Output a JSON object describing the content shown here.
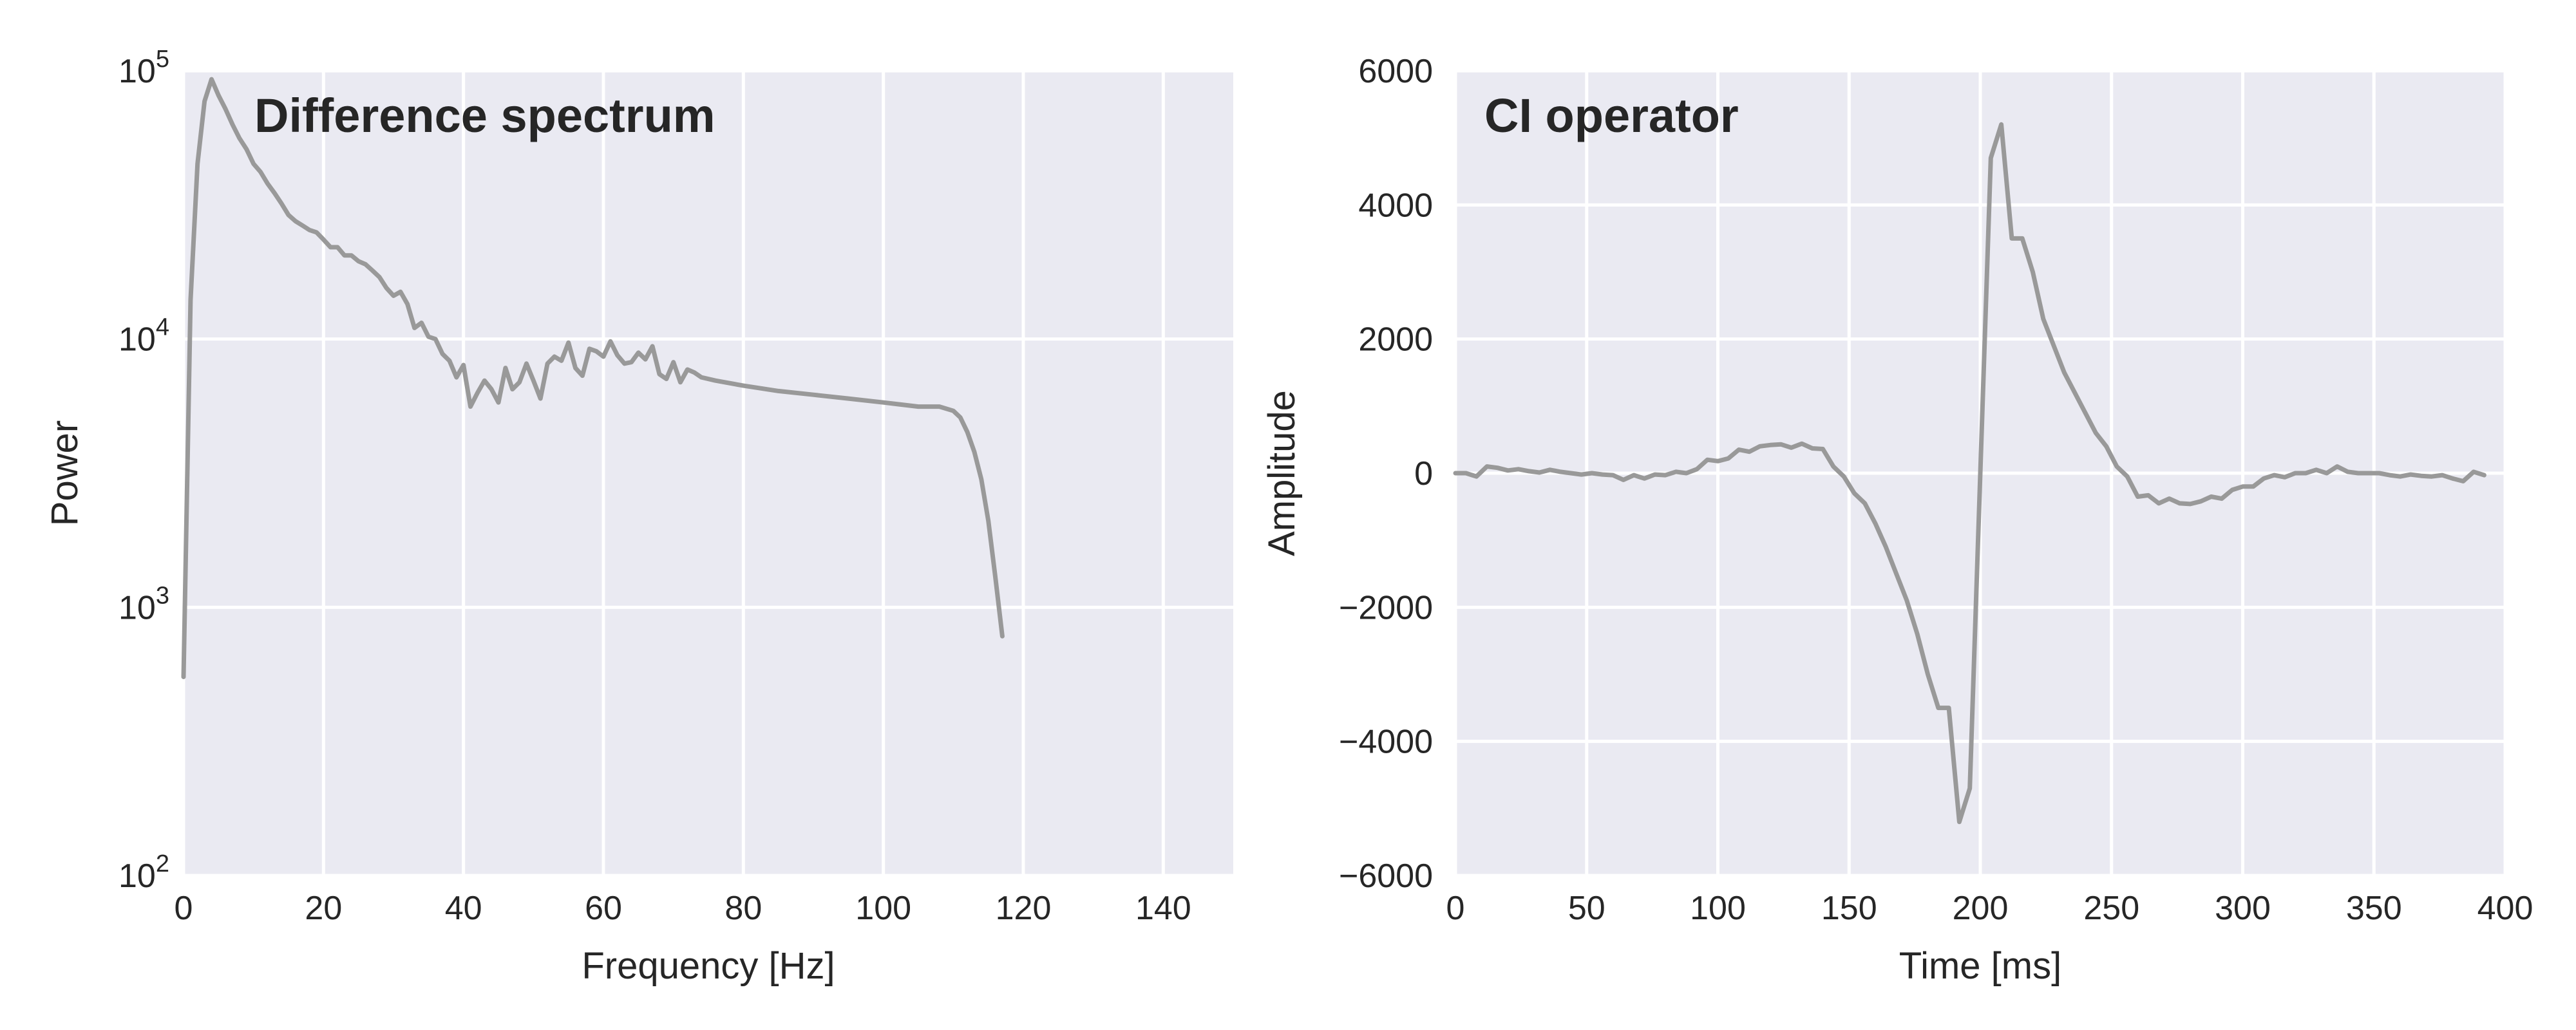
{
  "colors": {
    "plot_background": "#eaeaf2",
    "grid": "#ffffff",
    "series": "#999999",
    "text": "#262626"
  },
  "chart_data": [
    {
      "type": "line",
      "title": "Difference spectrum",
      "xlabel": "Frequency [Hz]",
      "ylabel": "Power",
      "yscale": "log",
      "xlim": [
        0,
        150
      ],
      "ylim": [
        100,
        100000
      ],
      "grid": true,
      "xticks": [
        0,
        20,
        40,
        60,
        80,
        100,
        120,
        140
      ],
      "yticks": [
        {
          "value": 100,
          "base": "10",
          "exp": "2"
        },
        {
          "value": 1000,
          "base": "10",
          "exp": "3"
        },
        {
          "value": 10000,
          "base": "10",
          "exp": "4"
        },
        {
          "value": 100000,
          "base": "10",
          "exp": "5"
        }
      ],
      "series": [
        {
          "points": [
            [
              0,
              550
            ],
            [
              1,
              14000
            ],
            [
              2,
              45000
            ],
            [
              3,
              77000
            ],
            [
              4,
              93000
            ],
            [
              5,
              81000
            ],
            [
              6,
              72000
            ],
            [
              7,
              63000
            ],
            [
              8,
              56000
            ],
            [
              9,
              51000
            ],
            [
              10,
              45000
            ],
            [
              11,
              42000
            ],
            [
              12,
              38000
            ],
            [
              13,
              35000
            ],
            [
              14,
              32000
            ],
            [
              15,
              29000
            ],
            [
              16,
              27500
            ],
            [
              17,
              26500
            ],
            [
              18,
              25500
            ],
            [
              19,
              25000
            ],
            [
              20,
              23500
            ],
            [
              21,
              22000
            ],
            [
              22,
              22000
            ],
            [
              23,
              20500
            ],
            [
              24,
              20500
            ],
            [
              25,
              19500
            ],
            [
              26,
              19000
            ],
            [
              27,
              18000
            ],
            [
              28,
              17000
            ],
            [
              29,
              15500
            ],
            [
              30,
              14500
            ],
            [
              31,
              15000
            ],
            [
              32,
              13500
            ],
            [
              33,
              11000
            ],
            [
              34,
              11500
            ],
            [
              35,
              10200
            ],
            [
              36,
              10000
            ],
            [
              37,
              8800
            ],
            [
              38,
              8300
            ],
            [
              39,
              7200
            ],
            [
              40,
              8000
            ],
            [
              41,
              5600
            ],
            [
              42,
              6300
            ],
            [
              43,
              7000
            ],
            [
              44,
              6500
            ],
            [
              45,
              5800
            ],
            [
              46,
              7800
            ],
            [
              47,
              6500
            ],
            [
              48,
              6900
            ],
            [
              49,
              8100
            ],
            [
              50,
              7000
            ],
            [
              51,
              6000
            ],
            [
              52,
              8100
            ],
            [
              53,
              8600
            ],
            [
              54,
              8300
            ],
            [
              55,
              9700
            ],
            [
              56,
              7800
            ],
            [
              57,
              7300
            ],
            [
              58,
              9200
            ],
            [
              59,
              9000
            ],
            [
              60,
              8600
            ],
            [
              61,
              9800
            ],
            [
              62,
              8700
            ],
            [
              63,
              8100
            ],
            [
              64,
              8200
            ],
            [
              65,
              8900
            ],
            [
              66,
              8400
            ],
            [
              67,
              9400
            ],
            [
              68,
              7400
            ],
            [
              69,
              7100
            ],
            [
              70,
              8200
            ],
            [
              71,
              6900
            ],
            [
              72,
              7700
            ],
            [
              73,
              7500
            ],
            [
              74,
              7200
            ],
            [
              76,
              7000
            ],
            [
              80,
              6700
            ],
            [
              85,
              6400
            ],
            [
              90,
              6200
            ],
            [
              95,
              6000
            ],
            [
              100,
              5800
            ],
            [
              105,
              5600
            ],
            [
              108,
              5600
            ],
            [
              110,
              5400
            ],
            [
              111,
              5100
            ],
            [
              112,
              4500
            ],
            [
              113,
              3800
            ],
            [
              114,
              3000
            ],
            [
              115,
              2100
            ],
            [
              116,
              1300
            ],
            [
              117,
              780
            ]
          ]
        }
      ]
    },
    {
      "type": "line",
      "title": "CI operator",
      "xlabel": "Time [ms]",
      "ylabel": "Amplitude",
      "xlim": [
        0,
        400
      ],
      "ylim": [
        -6000,
        6000
      ],
      "grid": true,
      "xticks": [
        0,
        50,
        100,
        150,
        200,
        250,
        300,
        350,
        400
      ],
      "yticks": [
        {
          "value": -6000,
          "label": "−6000"
        },
        {
          "value": -4000,
          "label": "−4000"
        },
        {
          "value": -2000,
          "label": "−2000"
        },
        {
          "value": 0,
          "label": "0"
        },
        {
          "value": 2000,
          "label": "2000"
        },
        {
          "value": 4000,
          "label": "4000"
        },
        {
          "value": 6000,
          "label": "6000"
        }
      ],
      "series": [
        {
          "points": [
            [
              0,
              0
            ],
            [
              4,
              0
            ],
            [
              8,
              -50
            ],
            [
              12,
              100
            ],
            [
              16,
              80
            ],
            [
              20,
              40
            ],
            [
              24,
              60
            ],
            [
              28,
              30
            ],
            [
              32,
              10
            ],
            [
              36,
              50
            ],
            [
              40,
              20
            ],
            [
              44,
              0
            ],
            [
              48,
              -20
            ],
            [
              52,
              0
            ],
            [
              56,
              -20
            ],
            [
              60,
              -30
            ],
            [
              64,
              -100
            ],
            [
              68,
              -30
            ],
            [
              72,
              -80
            ],
            [
              76,
              -20
            ],
            [
              80,
              -30
            ],
            [
              84,
              20
            ],
            [
              88,
              0
            ],
            [
              92,
              60
            ],
            [
              96,
              200
            ],
            [
              100,
              180
            ],
            [
              104,
              220
            ],
            [
              108,
              350
            ],
            [
              112,
              320
            ],
            [
              116,
              400
            ],
            [
              120,
              420
            ],
            [
              124,
              430
            ],
            [
              128,
              380
            ],
            [
              132,
              440
            ],
            [
              136,
              370
            ],
            [
              140,
              360
            ],
            [
              144,
              100
            ],
            [
              148,
              -50
            ],
            [
              152,
              -300
            ],
            [
              156,
              -450
            ],
            [
              160,
              -750
            ],
            [
              164,
              -1100
            ],
            [
              168,
              -1500
            ],
            [
              172,
              -1900
            ],
            [
              176,
              -2400
            ],
            [
              180,
              -3000
            ],
            [
              184,
              -3500
            ],
            [
              188,
              -3500
            ],
            [
              192,
              -5200
            ],
            [
              196,
              -4700
            ],
            [
              200,
              0
            ],
            [
              204,
              4700
            ],
            [
              208,
              5200
            ],
            [
              212,
              3500
            ],
            [
              216,
              3500
            ],
            [
              220,
              3000
            ],
            [
              224,
              2300
            ],
            [
              228,
              1900
            ],
            [
              232,
              1500
            ],
            [
              236,
              1200
            ],
            [
              240,
              900
            ],
            [
              244,
              600
            ],
            [
              248,
              400
            ],
            [
              252,
              100
            ],
            [
              256,
              -50
            ],
            [
              260,
              -350
            ],
            [
              264,
              -330
            ],
            [
              268,
              -450
            ],
            [
              272,
              -380
            ],
            [
              276,
              -450
            ],
            [
              280,
              -460
            ],
            [
              284,
              -420
            ],
            [
              288,
              -350
            ],
            [
              292,
              -380
            ],
            [
              296,
              -250
            ],
            [
              300,
              -200
            ],
            [
              304,
              -200
            ],
            [
              308,
              -80
            ],
            [
              312,
              -30
            ],
            [
              316,
              -60
            ],
            [
              320,
              0
            ],
            [
              324,
              0
            ],
            [
              328,
              50
            ],
            [
              332,
              0
            ],
            [
              336,
              100
            ],
            [
              340,
              20
            ],
            [
              344,
              0
            ],
            [
              348,
              0
            ],
            [
              352,
              0
            ],
            [
              356,
              -30
            ],
            [
              360,
              -50
            ],
            [
              364,
              -20
            ],
            [
              368,
              -40
            ],
            [
              372,
              -50
            ],
            [
              376,
              -30
            ],
            [
              380,
              -80
            ],
            [
              384,
              -120
            ],
            [
              388,
              20
            ],
            [
              392,
              -30
            ]
          ]
        }
      ]
    }
  ]
}
